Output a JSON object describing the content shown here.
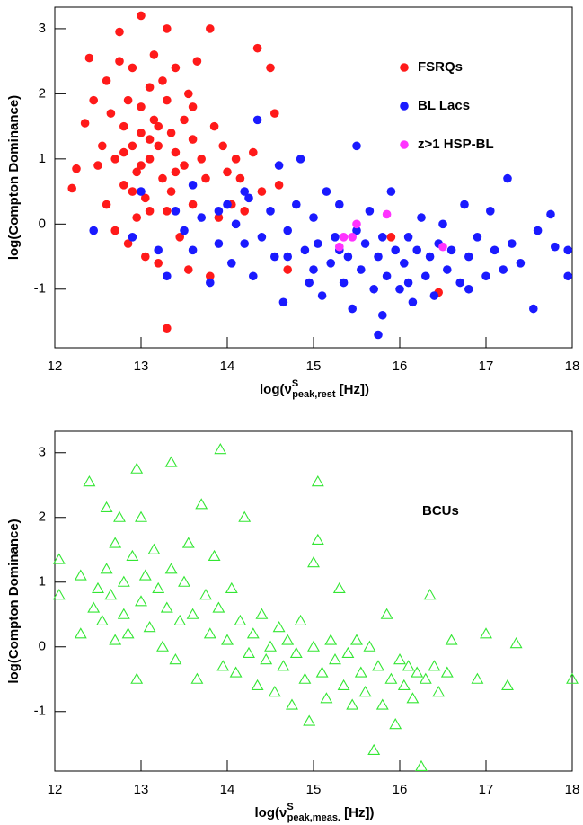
{
  "chart_data": [
    {
      "type": "scatter",
      "y_label": "log(Compton Dominance)",
      "x_label": {
        "main": "log(ν",
        "sup": "S",
        "sub": "peak,rest",
        "end": " [Hz])"
      },
      "xlim": [
        12,
        18
      ],
      "xticks": [
        12,
        13,
        14,
        15,
        16,
        17,
        18
      ],
      "ylim": [
        -1.9,
        3.33
      ],
      "yticks": [
        -1,
        0,
        1,
        2,
        3
      ],
      "legend_marker": true,
      "series": [
        {
          "name": "FSRQs",
          "color": "#ff1a1a",
          "marker": "circle",
          "x": [
            12.2,
            12.25,
            12.35,
            12.4,
            12.45,
            12.5,
            12.55,
            12.6,
            12.6,
            12.65,
            12.7,
            12.7,
            12.75,
            12.75,
            12.8,
            12.8,
            12.85,
            12.85,
            12.9,
            12.9,
            12.95,
            12.95,
            13.0,
            13.0,
            13.0,
            13.05,
            13.05,
            13.1,
            13.1,
            13.1,
            13.15,
            13.15,
            13.2,
            13.2,
            13.25,
            13.25,
            13.3,
            13.3,
            13.3,
            13.35,
            13.35,
            13.4,
            13.4,
            13.45,
            13.5,
            13.5,
            13.55,
            13.55,
            13.6,
            13.6,
            13.65,
            13.7,
            13.75,
            13.8,
            13.8,
            13.85,
            13.9,
            13.95,
            14.0,
            14.05,
            14.1,
            14.15,
            14.2,
            14.3,
            14.35,
            14.4,
            14.5,
            14.55,
            14.6,
            14.7,
            15.9,
            16.45,
            12.9,
            13.0,
            13.2,
            13.4,
            13.1,
            12.8,
            13.6,
            13.3
          ],
          "values": [
            0.55,
            0.85,
            1.55,
            2.55,
            1.9,
            0.9,
            1.2,
            2.2,
            0.3,
            1.7,
            1.0,
            -0.1,
            2.95,
            2.5,
            1.5,
            0.6,
            1.9,
            -0.3,
            2.4,
            1.2,
            0.8,
            0.1,
            3.2,
            1.8,
            1.4,
            0.4,
            -0.5,
            2.1,
            1.0,
            0.2,
            2.6,
            1.6,
            1.2,
            -0.6,
            2.2,
            0.7,
            -1.6,
            1.9,
            3.0,
            1.4,
            0.5,
            2.4,
            1.1,
            -0.2,
            1.6,
            0.9,
            2.0,
            -0.7,
            1.3,
            0.3,
            2.5,
            1.0,
            0.7,
            3.0,
            -0.8,
            1.5,
            0.1,
            1.2,
            0.8,
            0.3,
            1.0,
            0.7,
            0.2,
            1.1,
            2.7,
            0.5,
            2.4,
            1.7,
            0.6,
            -0.7,
            -0.2,
            -1.05,
            0.5,
            0.9,
            1.5,
            0.8,
            1.3,
            1.1,
            1.8,
            0.2
          ]
        },
        {
          "name": "BL Lacs",
          "color": "#1a1aff",
          "marker": "circle",
          "x": [
            12.45,
            12.9,
            13.0,
            13.2,
            13.3,
            13.4,
            13.5,
            13.6,
            13.7,
            13.8,
            13.9,
            14.0,
            14.05,
            14.1,
            14.2,
            14.25,
            14.3,
            14.35,
            14.4,
            14.5,
            14.55,
            14.6,
            14.65,
            14.7,
            14.8,
            14.85,
            14.9,
            14.95,
            15.0,
            15.05,
            15.1,
            15.15,
            15.2,
            15.25,
            15.3,
            15.35,
            15.4,
            15.45,
            15.5,
            15.5,
            15.55,
            15.6,
            15.65,
            15.7,
            15.75,
            15.8,
            15.8,
            15.85,
            15.9,
            15.95,
            16.0,
            16.05,
            16.1,
            16.15,
            16.2,
            16.25,
            16.3,
            16.35,
            16.4,
            16.45,
            16.5,
            16.55,
            16.6,
            16.7,
            16.75,
            16.8,
            16.9,
            17.0,
            17.05,
            17.1,
            17.2,
            17.25,
            17.3,
            17.4,
            17.55,
            17.75,
            17.8,
            17.95,
            17.95,
            15.75,
            14.2,
            14.7,
            15.0,
            16.1,
            13.6,
            13.9,
            15.3,
            16.8,
            17.6
          ],
          "values": [
            -0.1,
            -0.2,
            0.5,
            -0.4,
            -0.8,
            0.2,
            -0.1,
            -0.4,
            0.1,
            -0.9,
            -0.3,
            0.3,
            -0.6,
            0.0,
            -0.3,
            0.4,
            -0.8,
            1.6,
            -0.2,
            0.2,
            -0.5,
            0.9,
            -1.2,
            -0.1,
            0.3,
            1.0,
            -0.4,
            -0.9,
            0.1,
            -0.3,
            -1.1,
            0.5,
            -0.6,
            -0.2,
            0.3,
            -0.9,
            -0.5,
            -1.3,
            1.2,
            -0.1,
            -0.7,
            -0.3,
            0.2,
            -1.0,
            -0.5,
            -1.4,
            -0.2,
            -0.8,
            0.5,
            -0.4,
            -1.0,
            -0.6,
            -0.2,
            -1.2,
            -0.4,
            0.1,
            -0.8,
            -0.5,
            -1.1,
            -0.3,
            0.0,
            -0.7,
            -0.4,
            -0.9,
            0.3,
            -0.5,
            -0.2,
            -0.8,
            0.2,
            -0.4,
            -0.7,
            0.7,
            -0.3,
            -0.6,
            -1.3,
            0.15,
            -0.35,
            -0.4,
            -0.8,
            -1.7,
            0.5,
            -0.5,
            -0.7,
            -0.9,
            0.6,
            0.2,
            -0.4,
            -1.0,
            -0.1
          ]
        },
        {
          "name": "z>1 HSP-BL",
          "color": "#ff33ff",
          "marker": "circle",
          "x": [
            15.35,
            15.3,
            15.45,
            15.5,
            15.85,
            16.5
          ],
          "values": [
            -0.2,
            -0.35,
            -0.2,
            0.0,
            0.15,
            -0.35
          ]
        }
      ]
    },
    {
      "type": "scatter",
      "y_label": "log(Compton Dominance)",
      "x_label": {
        "main": "log(ν",
        "sup": "S",
        "sub": "peak,meas.",
        "end": " [Hz])"
      },
      "xlim": [
        12,
        18
      ],
      "xticks": [
        12,
        13,
        14,
        15,
        16,
        17,
        18
      ],
      "ylim": [
        -1.92,
        3.33
      ],
      "yticks": [
        -1,
        0,
        1,
        2,
        3
      ],
      "legend_marker": false,
      "series": [
        {
          "name": "BCUs",
          "color": "#33e633",
          "marker": "triangle",
          "x": [
            12.05,
            12.05,
            12.3,
            12.3,
            12.4,
            12.45,
            12.5,
            12.55,
            12.6,
            12.6,
            12.65,
            12.7,
            12.7,
            12.75,
            12.8,
            12.8,
            12.85,
            12.9,
            12.95,
            12.95,
            13.0,
            13.0,
            13.05,
            13.1,
            13.15,
            13.2,
            13.25,
            13.3,
            13.35,
            13.35,
            13.4,
            13.45,
            13.5,
            13.55,
            13.6,
            13.65,
            13.7,
            13.75,
            13.8,
            13.85,
            13.9,
            13.92,
            13.95,
            14.0,
            14.05,
            14.1,
            14.15,
            14.2,
            14.25,
            14.3,
            14.35,
            14.4,
            14.45,
            14.5,
            14.55,
            14.6,
            14.65,
            14.7,
            14.75,
            14.8,
            14.85,
            14.9,
            14.95,
            15.0,
            15.0,
            15.05,
            15.05,
            15.1,
            15.15,
            15.2,
            15.25,
            15.3,
            15.35,
            15.4,
            15.45,
            15.5,
            15.55,
            15.6,
            15.65,
            15.7,
            15.75,
            15.8,
            15.85,
            15.9,
            15.95,
            16.0,
            16.05,
            16.1,
            16.15,
            16.2,
            16.25,
            16.3,
            16.35,
            16.4,
            16.45,
            16.55,
            16.6,
            16.9,
            17.0,
            17.25,
            17.35,
            18.0
          ],
          "values": [
            1.35,
            0.8,
            1.1,
            0.2,
            2.55,
            0.6,
            0.9,
            0.4,
            2.15,
            1.2,
            0.8,
            1.6,
            0.1,
            2.0,
            1.0,
            0.5,
            0.2,
            1.4,
            2.75,
            -0.5,
            2.0,
            0.7,
            1.1,
            0.3,
            1.5,
            0.9,
            0.0,
            0.6,
            2.85,
            1.2,
            -0.2,
            0.4,
            1.0,
            1.6,
            0.5,
            -0.5,
            2.2,
            0.8,
            0.2,
            1.4,
            0.6,
            3.05,
            -0.3,
            0.1,
            0.9,
            -0.4,
            0.4,
            2.0,
            -0.1,
            0.2,
            -0.6,
            0.5,
            -0.2,
            0.0,
            -0.7,
            0.3,
            -0.3,
            0.1,
            -0.9,
            -0.1,
            0.4,
            -0.5,
            -1.15,
            1.3,
            0.0,
            2.55,
            1.65,
            -0.4,
            -0.8,
            0.1,
            -0.2,
            0.9,
            -0.6,
            -0.1,
            -0.9,
            0.1,
            -0.4,
            -0.7,
            0.0,
            -1.6,
            -0.3,
            -0.9,
            0.5,
            -0.5,
            -1.2,
            -0.2,
            -0.6,
            -0.3,
            -0.8,
            -0.4,
            -1.85,
            -0.5,
            0.8,
            -0.3,
            -0.7,
            -0.4,
            0.1,
            -0.5,
            0.2,
            -0.6,
            0.05,
            -0.5
          ]
        }
      ]
    }
  ]
}
